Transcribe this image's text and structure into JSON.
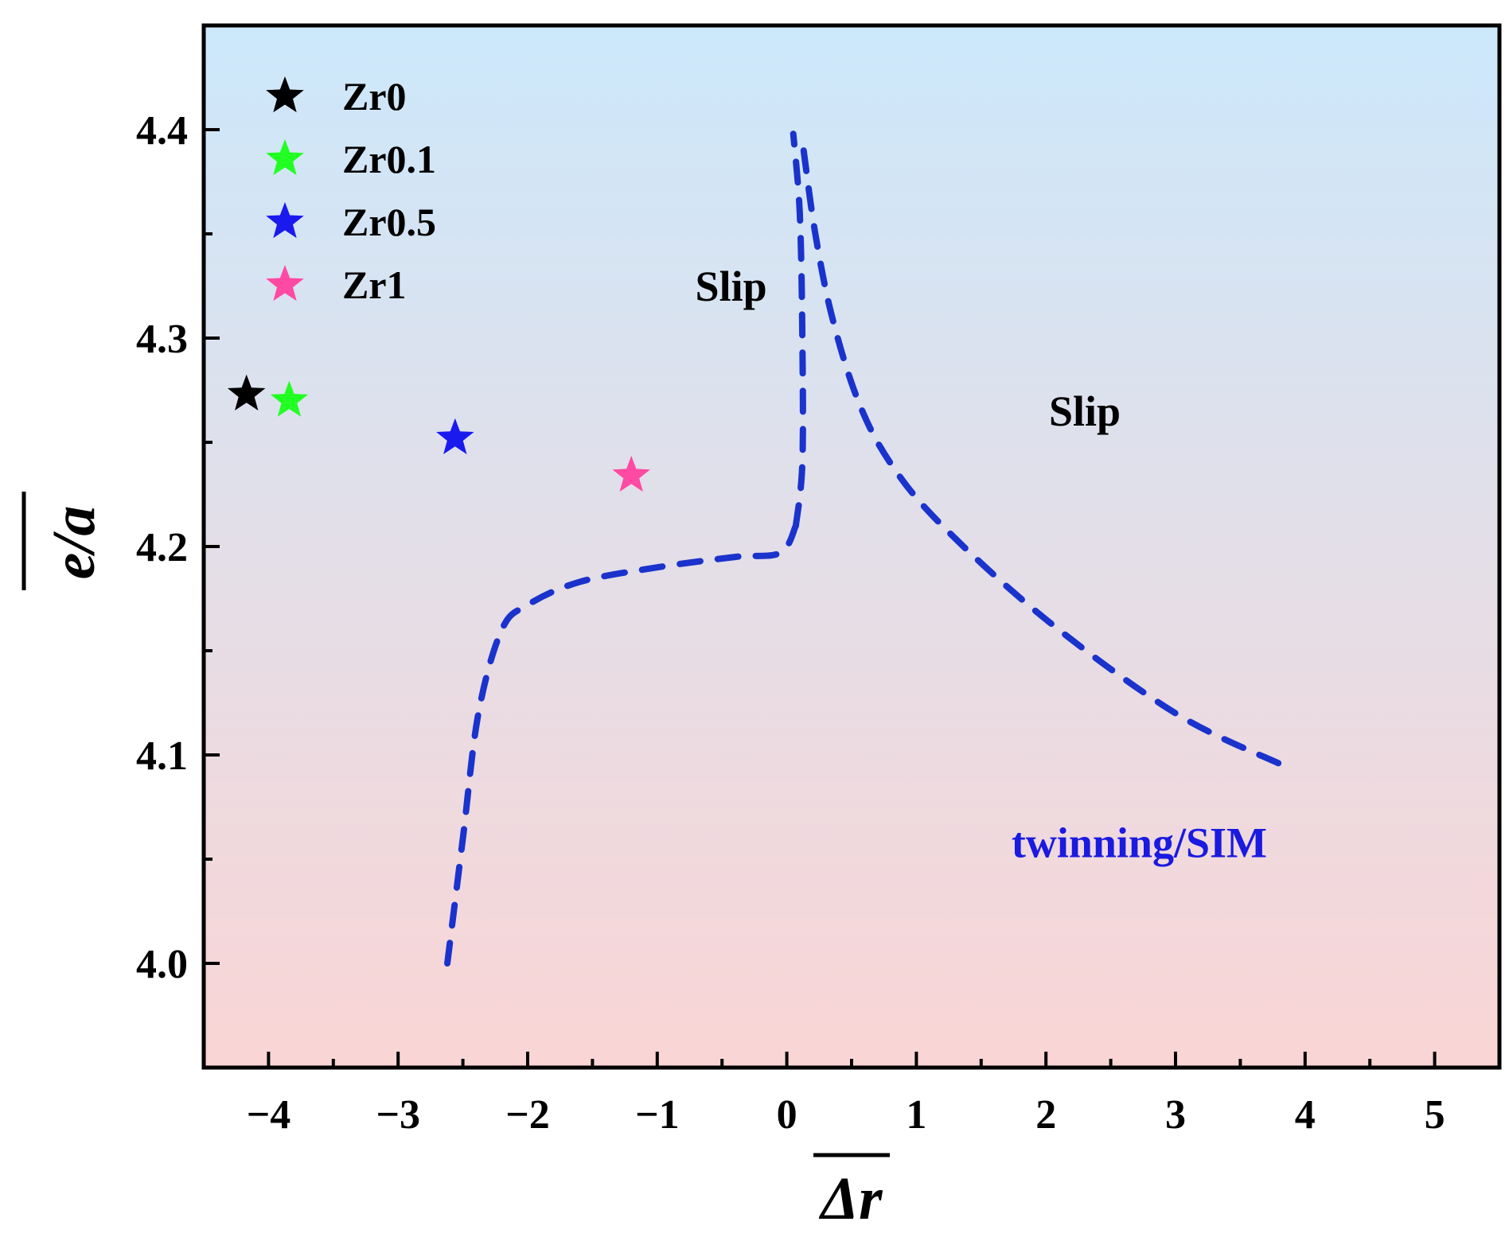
{
  "chart_data": {
    "type": "scatter",
    "xlabel": "Δr",
    "ylabel": "e/a",
    "xlim": [
      -4.5,
      5.5
    ],
    "ylim": [
      3.95,
      4.45
    ],
    "xticks": [
      -4,
      -3,
      -2,
      -1,
      0,
      1,
      2,
      3,
      4,
      5
    ],
    "xtick_labels": [
      "−4",
      "−3",
      "−2",
      "−1",
      "0",
      "1",
      "2",
      "3",
      "4",
      "5"
    ],
    "yticks": [
      4.0,
      4.1,
      4.2,
      4.3,
      4.4
    ],
    "ytick_labels": [
      "4.0",
      "4.1",
      "4.2",
      "4.3",
      "4.4"
    ],
    "background_gradient": {
      "top": "#cce8fb",
      "bottom": "#fad5d5"
    },
    "series": [
      {
        "name": "Zr0",
        "x": -4.17,
        "y": 4.273,
        "color": "#000000",
        "marker": "star-icon"
      },
      {
        "name": "Zr0.1",
        "x": -3.84,
        "y": 4.27,
        "color": "#22ff22",
        "marker": "star-icon"
      },
      {
        "name": "Zr0.5",
        "x": -2.56,
        "y": 4.252,
        "color": "#1a1aee",
        "marker": "star-icon"
      },
      {
        "name": "Zr1",
        "x": -1.2,
        "y": 4.234,
        "color": "#ff4aa3",
        "marker": "star-icon"
      }
    ],
    "boundaries": [
      {
        "name": "lower-left-boundary",
        "color": "#1a33cc",
        "style": "dashed",
        "points": [
          [
            -2.62,
            4.0
          ],
          [
            -2.5,
            4.06
          ],
          [
            -2.38,
            4.12
          ],
          [
            -2.2,
            4.16
          ],
          [
            -2.0,
            4.172
          ],
          [
            -1.6,
            4.183
          ],
          [
            -1.0,
            4.19
          ],
          [
            -0.4,
            4.195
          ],
          [
            -0.05,
            4.197
          ],
          [
            0.07,
            4.21
          ]
        ]
      },
      {
        "name": "central-vertical-boundary",
        "color": "#1a33cc",
        "style": "dashed",
        "points": [
          [
            0.07,
            4.21
          ],
          [
            0.12,
            4.24
          ],
          [
            0.12,
            4.3
          ],
          [
            0.1,
            4.36
          ],
          [
            0.05,
            4.398
          ]
        ]
      },
      {
        "name": "right-boundary",
        "color": "#1a33cc",
        "style": "dashed",
        "points": [
          [
            0.13,
            4.39
          ],
          [
            0.22,
            4.35
          ],
          [
            0.35,
            4.31
          ],
          [
            0.55,
            4.27
          ],
          [
            0.8,
            4.24
          ],
          [
            1.2,
            4.21
          ],
          [
            2.0,
            4.165
          ],
          [
            3.0,
            4.12
          ],
          [
            3.83,
            4.095
          ]
        ]
      }
    ],
    "annotations": [
      {
        "text": "Slip",
        "x": -0.43,
        "y": 4.318,
        "color": "#000000"
      },
      {
        "text": "Slip",
        "x": 2.3,
        "y": 4.258,
        "color": "#000000"
      },
      {
        "text": "twinning/SIM",
        "x": 2.72,
        "y": 4.051,
        "color": "#1a1ae0"
      }
    ],
    "legend": {
      "position": "top-left"
    }
  }
}
